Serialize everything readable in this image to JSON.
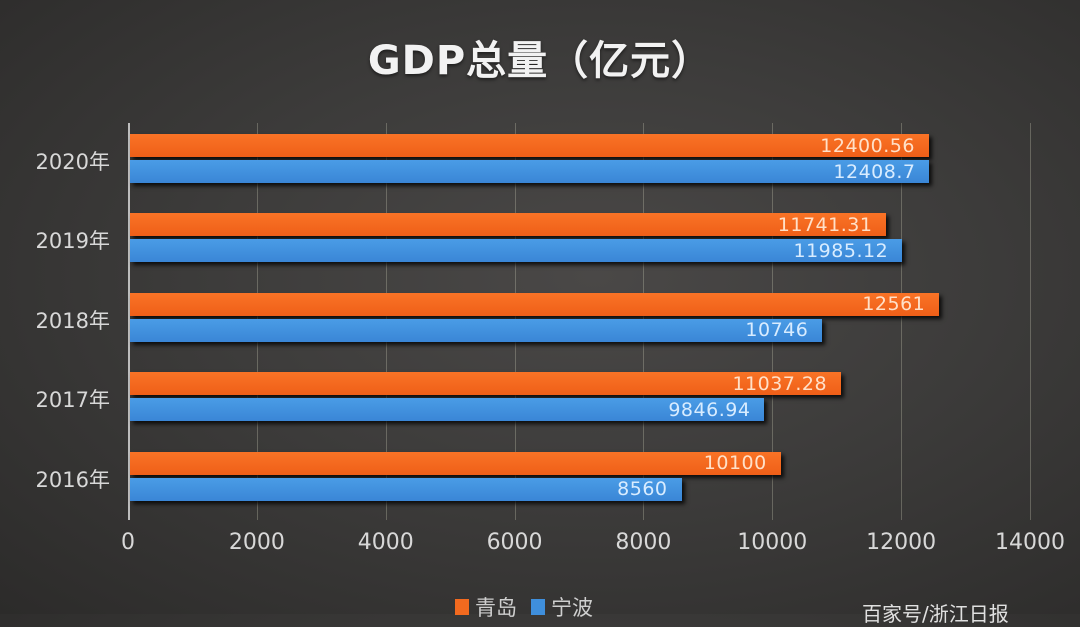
{
  "chart_data": {
    "type": "bar",
    "orientation": "horizontal",
    "title": "GDP总量（亿元）",
    "xlabel": "",
    "ylabel": "",
    "xlim": [
      0,
      14000
    ],
    "x_ticks": [
      "0",
      "2000",
      "4000",
      "6000",
      "8000",
      "10000",
      "12000",
      "14000"
    ],
    "grid": true,
    "legend_position": "bottom",
    "categories": [
      "2020年",
      "2019年",
      "2018年",
      "2017年",
      "2016年"
    ],
    "series": [
      {
        "name": "青岛",
        "color": "#f26a1f",
        "values": [
          12400.56,
          11741.31,
          12561,
          11037.28,
          10100
        ],
        "labels": [
          "12400.56",
          "11741.31",
          "12561",
          "11037.28",
          "10100"
        ]
      },
      {
        "name": "宁波",
        "color": "#3f8fdc",
        "values": [
          12408.7,
          11985.12,
          10746,
          9846.94,
          8560
        ],
        "labels": [
          "12408.7",
          "11985.12",
          "10746",
          "9846.94",
          "8560"
        ]
      }
    ]
  },
  "watermark": "百家号/浙江日报"
}
